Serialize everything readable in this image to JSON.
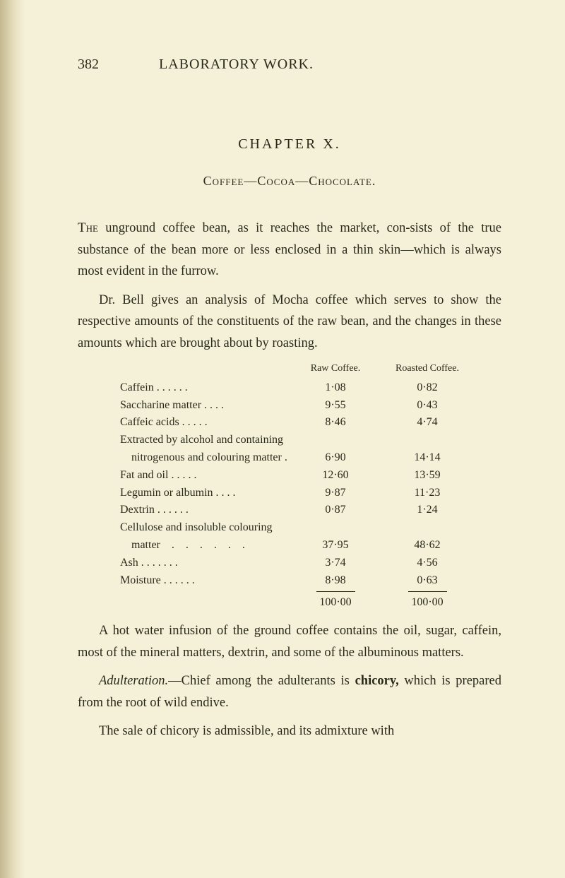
{
  "page": {
    "number": "382",
    "running_title": "LABORATORY WORK."
  },
  "chapter": {
    "title": "CHAPTER X.",
    "subtitle": "Coffee—Cocoa—Chocolate."
  },
  "paragraphs": {
    "p1_lead": "The",
    "p1_rest": " unground coffee bean, as it reaches the market, con-sists of the true substance of the bean more or less enclosed in a thin skin—which is always most evident in the furrow.",
    "p2": "Dr. Bell gives an analysis of Mocha coffee which serves to show the respective amounts of the constituents of the raw bean, and the changes in these amounts which are brought about by roasting.",
    "p3": "A hot water infusion of the ground coffee contains the oil, sugar, caffein, most of the mineral matters, dextrin, and some of the albuminous matters.",
    "p4_lead": "Adulteration.",
    "p4_rest": "—Chief among the adulterants is ",
    "p4_bold": "chicory,",
    "p4_tail": " which is prepared from the root of wild endive.",
    "p5": "The sale of chicory is admissible, and its admixture with"
  },
  "table": {
    "headers": {
      "col1": "Raw Coffee.",
      "col2": "Roasted Coffee."
    },
    "rows": [
      {
        "label": "Caffein    .    .    .    .    .    .",
        "v1": "1·08",
        "v2": "0·82"
      },
      {
        "label": "Saccharine matter    .    .    .    .",
        "v1": "9·55",
        "v2": "0·43"
      },
      {
        "label": "Caffeic acids    .    .    .    .    .",
        "v1": "8·46",
        "v2": "4·74"
      },
      {
        "label": "Extracted by alcohol and containing",
        "v1": "",
        "v2": ""
      },
      {
        "label": "    nitrogenous and colouring matter .",
        "v1": "6·90",
        "v2": "14·14"
      },
      {
        "label": "Fat and oil    .    .    .    .    .",
        "v1": "12·60",
        "v2": "13·59"
      },
      {
        "label": "Legumin or albumin .    .    .    .",
        "v1": "9·87",
        "v2": "11·23"
      },
      {
        "label": "Dextrin    .    .    .    .    .    .",
        "v1": "0·87",
        "v2": "1·24"
      },
      {
        "label": "Cellulose and insoluble colouring",
        "v1": "",
        "v2": ""
      },
      {
        "label": "    matter    .    .    .    .    .    .",
        "v1": "37·95",
        "v2": "48·62"
      },
      {
        "label": "Ash .    .    .    .    .    .    .",
        "v1": "3·74",
        "v2": "4·56"
      },
      {
        "label": "Moisture    .    .    .    .    .    .",
        "v1": "8·98",
        "v2": "0·63"
      }
    ],
    "totals": {
      "v1": "100·00",
      "v2": "100·00"
    }
  },
  "style": {
    "background_color": "#f5f0d8",
    "text_color": "#2a2a1a",
    "body_fontsize": 18.5,
    "table_fontsize": 16,
    "header_fontsize": 14
  }
}
